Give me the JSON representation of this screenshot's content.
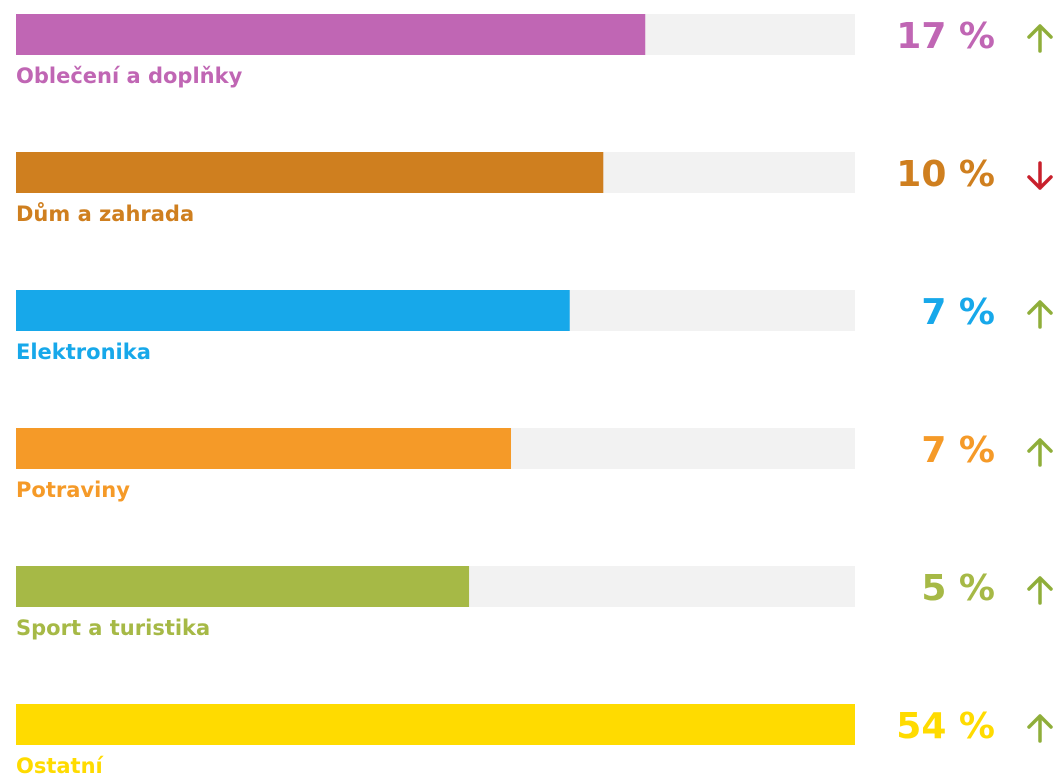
{
  "chart_data": {
    "type": "bar",
    "categories": [
      "Oblečení a doplňky",
      "Dům a zahrada",
      "Elektronika",
      "Potraviny",
      "Sport a turistika",
      "Ostatní"
    ],
    "values": [
      17,
      10,
      7,
      7,
      5,
      54
    ],
    "value_labels": [
      "17 %",
      "10 %",
      "7 %",
      "7 %",
      "5 %",
      "54 %"
    ],
    "bar_values": [
      75,
      70,
      66,
      59,
      54,
      100
    ],
    "xlim": [
      0,
      100
    ],
    "colors": [
      "#c066b4",
      "#cf7f1f",
      "#17a8ea",
      "#f59a28",
      "#a6b946",
      "#ffdb00"
    ],
    "track_color": "#f2f2f2",
    "trend": [
      "up",
      "down",
      "up",
      "up",
      "up",
      "up"
    ],
    "trend_colors": {
      "up": "#8fae3a",
      "down": "#c8202c"
    }
  }
}
